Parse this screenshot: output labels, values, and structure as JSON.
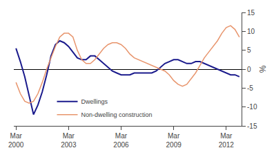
{
  "chart_data": {
    "type": "line",
    "ylabel": "%",
    "categories": [
      "Mar\n2000",
      null,
      null,
      null,
      null,
      null,
      null,
      null,
      null,
      null,
      null,
      null,
      "Mar\n2003",
      null,
      null,
      null,
      null,
      null,
      null,
      null,
      null,
      null,
      null,
      null,
      "Mar\n2006",
      null,
      null,
      null,
      null,
      null,
      null,
      null,
      null,
      null,
      null,
      null,
      "Mar\n2009",
      null,
      null,
      null,
      null,
      null,
      null,
      null,
      null,
      null,
      null,
      null,
      "Mar\n2012",
      null,
      null,
      null
    ],
    "series": [
      {
        "name": "Dwellings",
        "color": "#1a1a8c",
        "values": [
          5.5,
          2.0,
          -2.0,
          -7.0,
          -12.0,
          -9.5,
          -6.0,
          -1.5,
          3.5,
          6.5,
          7.5,
          7.0,
          6.0,
          4.5,
          3.0,
          2.5,
          2.5,
          3.5,
          3.5,
          2.5,
          1.5,
          0.5,
          -0.5,
          -1.0,
          -1.5,
          -1.5,
          -1.5,
          -1.0,
          -1.0,
          -1.0,
          -1.0,
          -1.0,
          -0.5,
          0.5,
          1.5,
          2.0,
          2.5,
          2.5,
          2.0,
          1.5,
          1.5,
          2.0,
          2.0,
          1.5,
          1.0,
          0.5,
          0.0,
          -0.5,
          -1.0,
          -1.5,
          -1.5,
          -2.0
        ]
      },
      {
        "name": "Non-dwelling construction",
        "color": "#e8956d",
        "values": [
          -3.5,
          -6.5,
          -8.5,
          -9.0,
          -8.5,
          -6.5,
          -3.5,
          0.0,
          3.0,
          6.0,
          8.5,
          9.5,
          9.5,
          8.5,
          5.0,
          2.5,
          1.5,
          1.5,
          2.5,
          4.0,
          5.5,
          6.5,
          7.0,
          7.0,
          6.5,
          5.5,
          4.0,
          3.0,
          2.5,
          2.0,
          1.5,
          1.0,
          0.5,
          0.0,
          -0.5,
          -1.5,
          -3.0,
          -4.0,
          -4.5,
          -4.0,
          -2.5,
          -1.0,
          1.0,
          3.0,
          4.5,
          6.0,
          7.5,
          9.5,
          11.0,
          11.5,
          10.5,
          8.5
        ]
      }
    ],
    "ylim": [
      -15,
      15
    ],
    "yticks": [
      -15,
      -10,
      -5,
      0,
      5,
      10,
      15
    ],
    "grid": false,
    "legend": "lower center"
  }
}
